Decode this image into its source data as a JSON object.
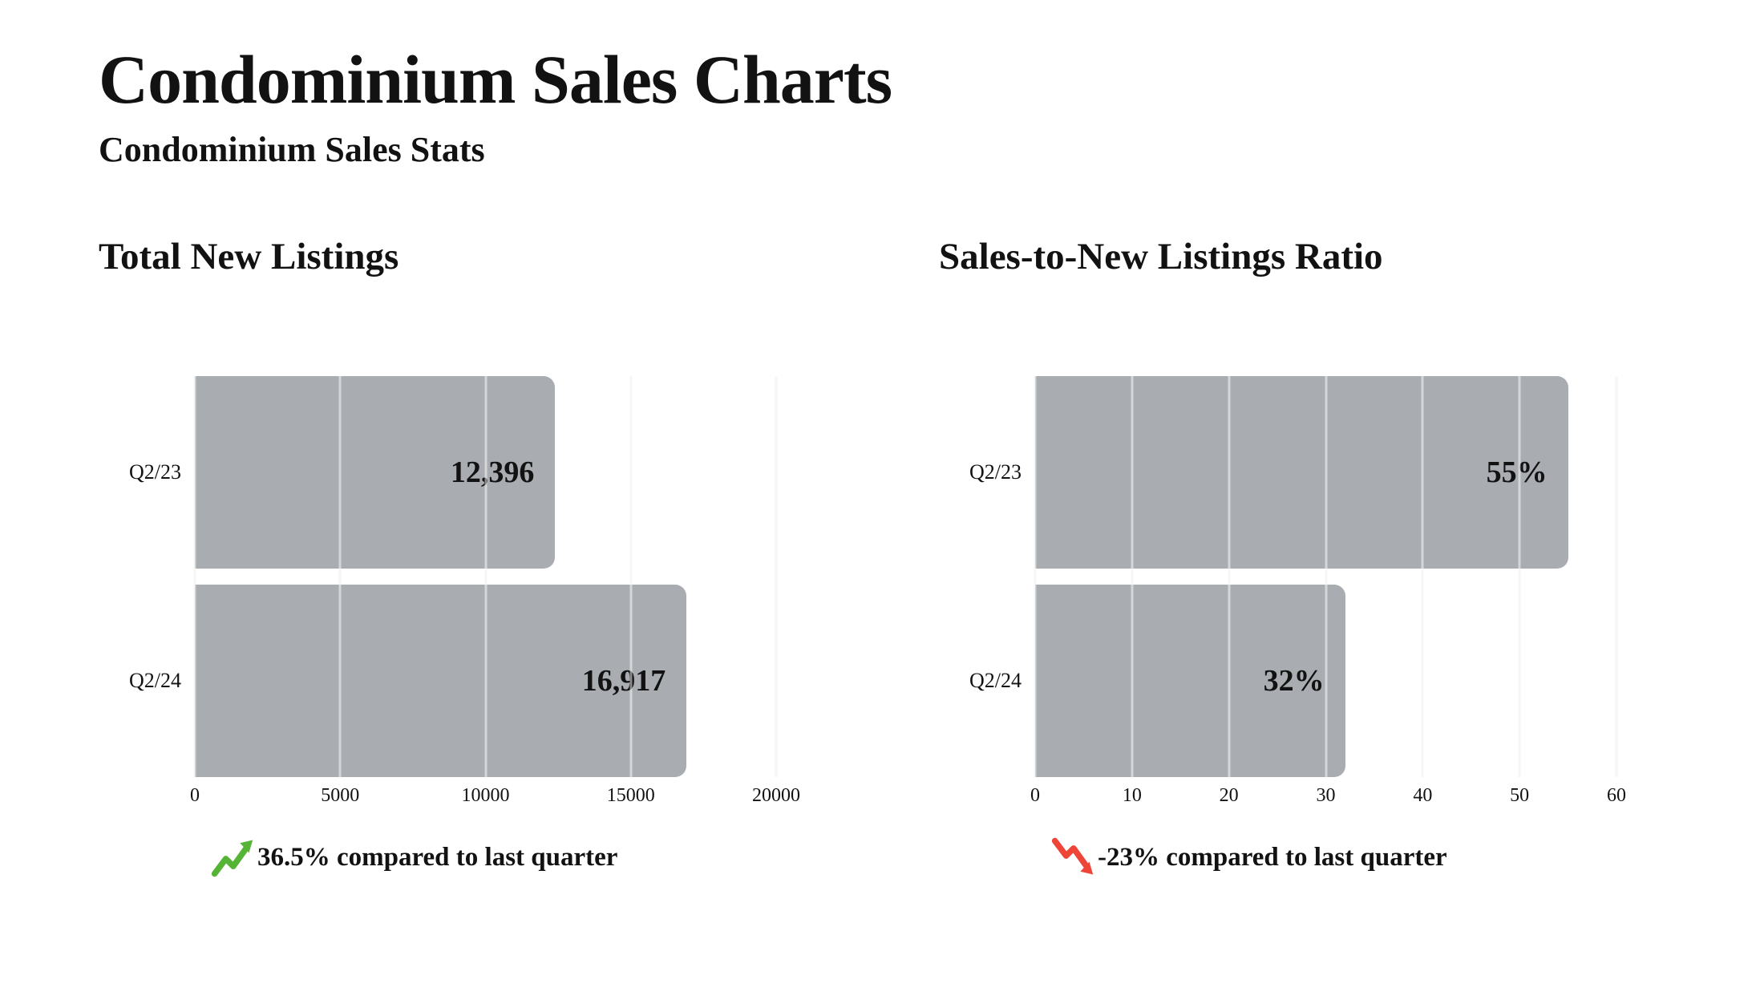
{
  "page": {
    "title": "Condominium Sales Charts",
    "subtitle": "Condominium Sales Stats"
  },
  "colors": {
    "bar": "#a9acb0",
    "grid_under": "#ececec",
    "grid_over": "rgba(255,255,255,0.5)",
    "trend_up": "#55b435",
    "trend_down": "#ee4538",
    "text": "#121212",
    "background": "#ffffff"
  },
  "chart_data": [
    {
      "type": "bar",
      "orientation": "horizontal",
      "title": "Total New Listings",
      "categories": [
        "Q2/23",
        "Q2/24"
      ],
      "values": [
        12396,
        16917
      ],
      "value_labels": [
        "12,396",
        "16,917"
      ],
      "xlim": [
        0,
        20000
      ],
      "ticks": [
        0,
        5000,
        10000,
        15000,
        20000
      ],
      "tick_labels": [
        "0",
        "5000",
        "10000",
        "15000",
        "20000"
      ],
      "grid": true,
      "legend": "none",
      "trend": {
        "direction": "up",
        "label": "36.5% compared to last quarter"
      }
    },
    {
      "type": "bar",
      "orientation": "horizontal",
      "title": "Sales-to-New Listings Ratio",
      "categories": [
        "Q2/23",
        "Q2/24"
      ],
      "values": [
        55,
        32
      ],
      "value_labels": [
        "55%",
        "32%"
      ],
      "xlim": [
        0,
        60
      ],
      "ticks": [
        0,
        10,
        20,
        30,
        40,
        50,
        60
      ],
      "tick_labels": [
        "0",
        "10",
        "20",
        "30",
        "40",
        "50",
        "60"
      ],
      "grid": true,
      "legend": "none",
      "trend": {
        "direction": "down",
        "label": "-23% compared to last quarter"
      }
    }
  ]
}
